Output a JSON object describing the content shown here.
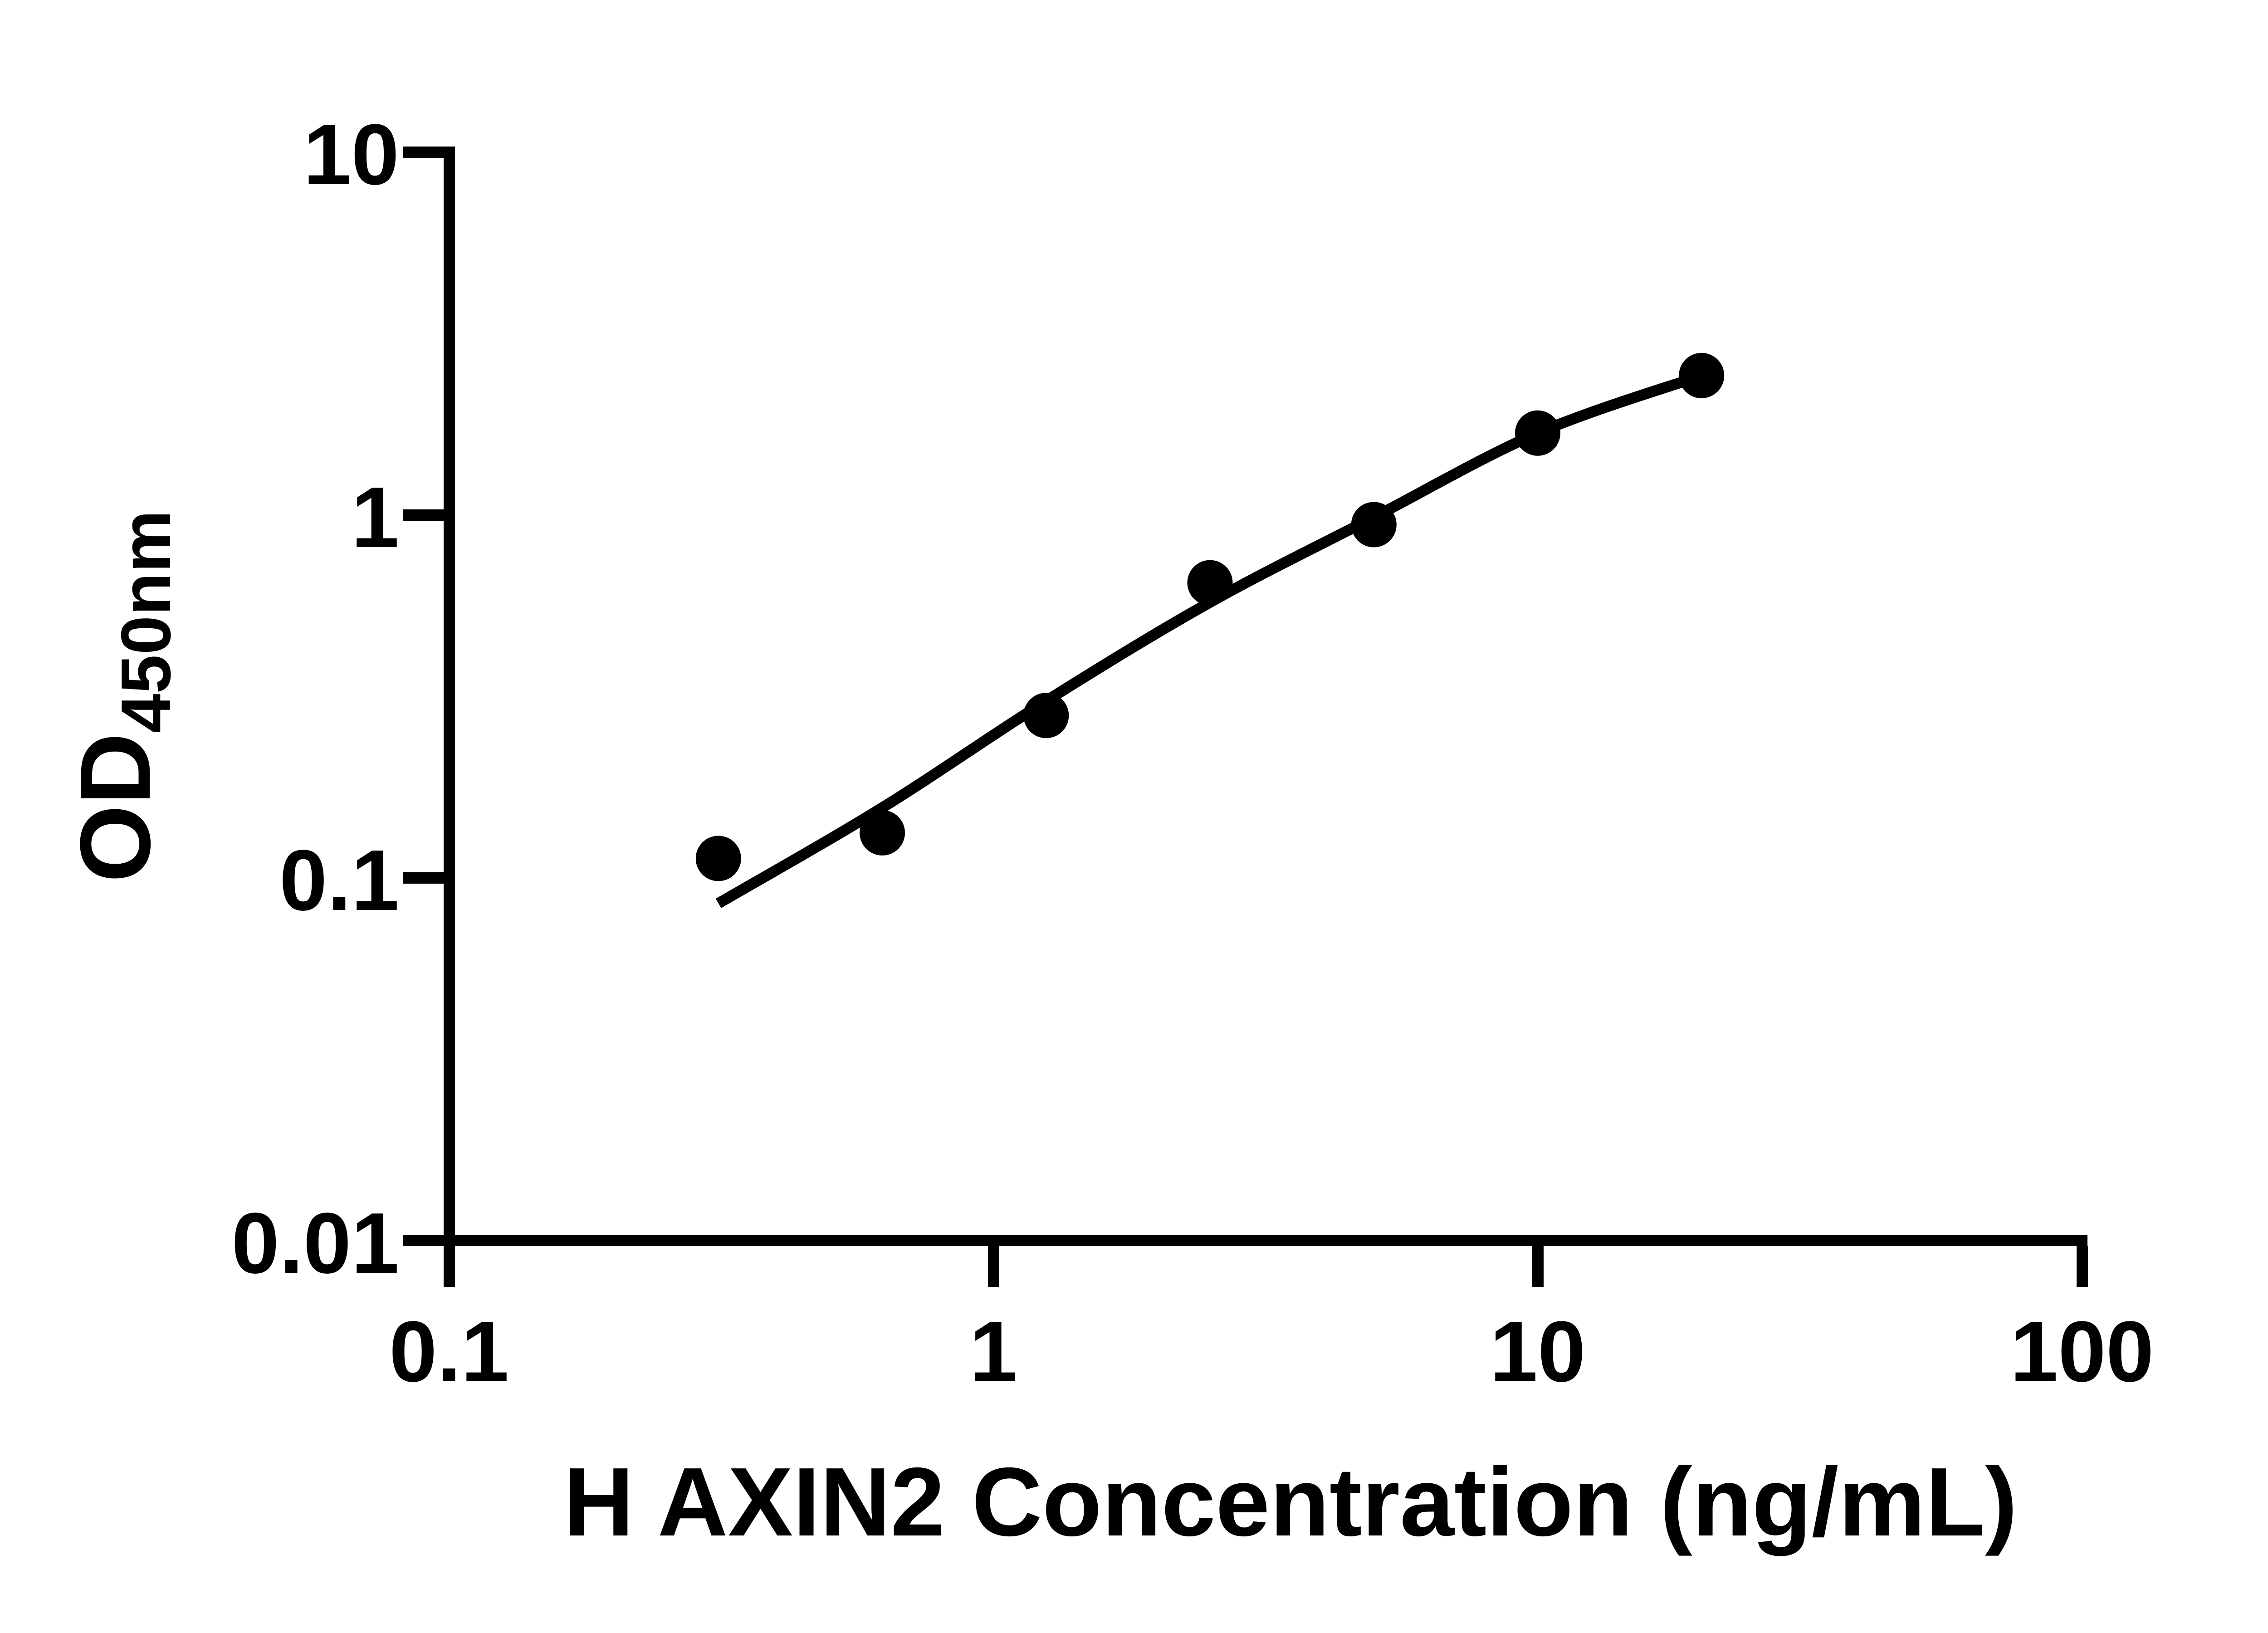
{
  "figure": {
    "background_color": "#ffffff",
    "ink_color": "#000000",
    "marker_color": "#000000",
    "curve_color": "#000000"
  },
  "chart_data": {
    "type": "scatter",
    "title": "",
    "xlabel": "H AXIN2 Concentration (ng/mL)",
    "ylabel_main": "OD",
    "ylabel_sub": "450nm",
    "x_scale": "log",
    "y_scale": "log",
    "xlim": [
      0.1,
      100
    ],
    "ylim": [
      0.01,
      10
    ],
    "x_tick_values": [
      0.1,
      1,
      10,
      100
    ],
    "x_tick_labels": [
      "0.1",
      "1",
      "10",
      "100"
    ],
    "y_tick_values": [
      10,
      1,
      0.1,
      0.01
    ],
    "y_tick_labels": [
      "10",
      "1",
      "0.1",
      "0.01"
    ],
    "grid": false,
    "legend": "none",
    "series": [
      {
        "name": "H AXIN2 standard curve points",
        "marker": "filled-circle",
        "x": [
          0.3125,
          0.625,
          1.25,
          2.5,
          5,
          10,
          20
        ],
        "y": [
          0.113,
          0.133,
          0.28,
          0.65,
          0.94,
          1.68,
          2.42
        ]
      }
    ],
    "fit_curve": {
      "name": "4PL fit line",
      "x": [
        0.3125,
        0.625,
        1.25,
        2.5,
        5,
        10,
        20
      ],
      "y": [
        0.085,
        0.156,
        0.307,
        0.574,
        0.985,
        1.68,
        2.42
      ]
    }
  }
}
